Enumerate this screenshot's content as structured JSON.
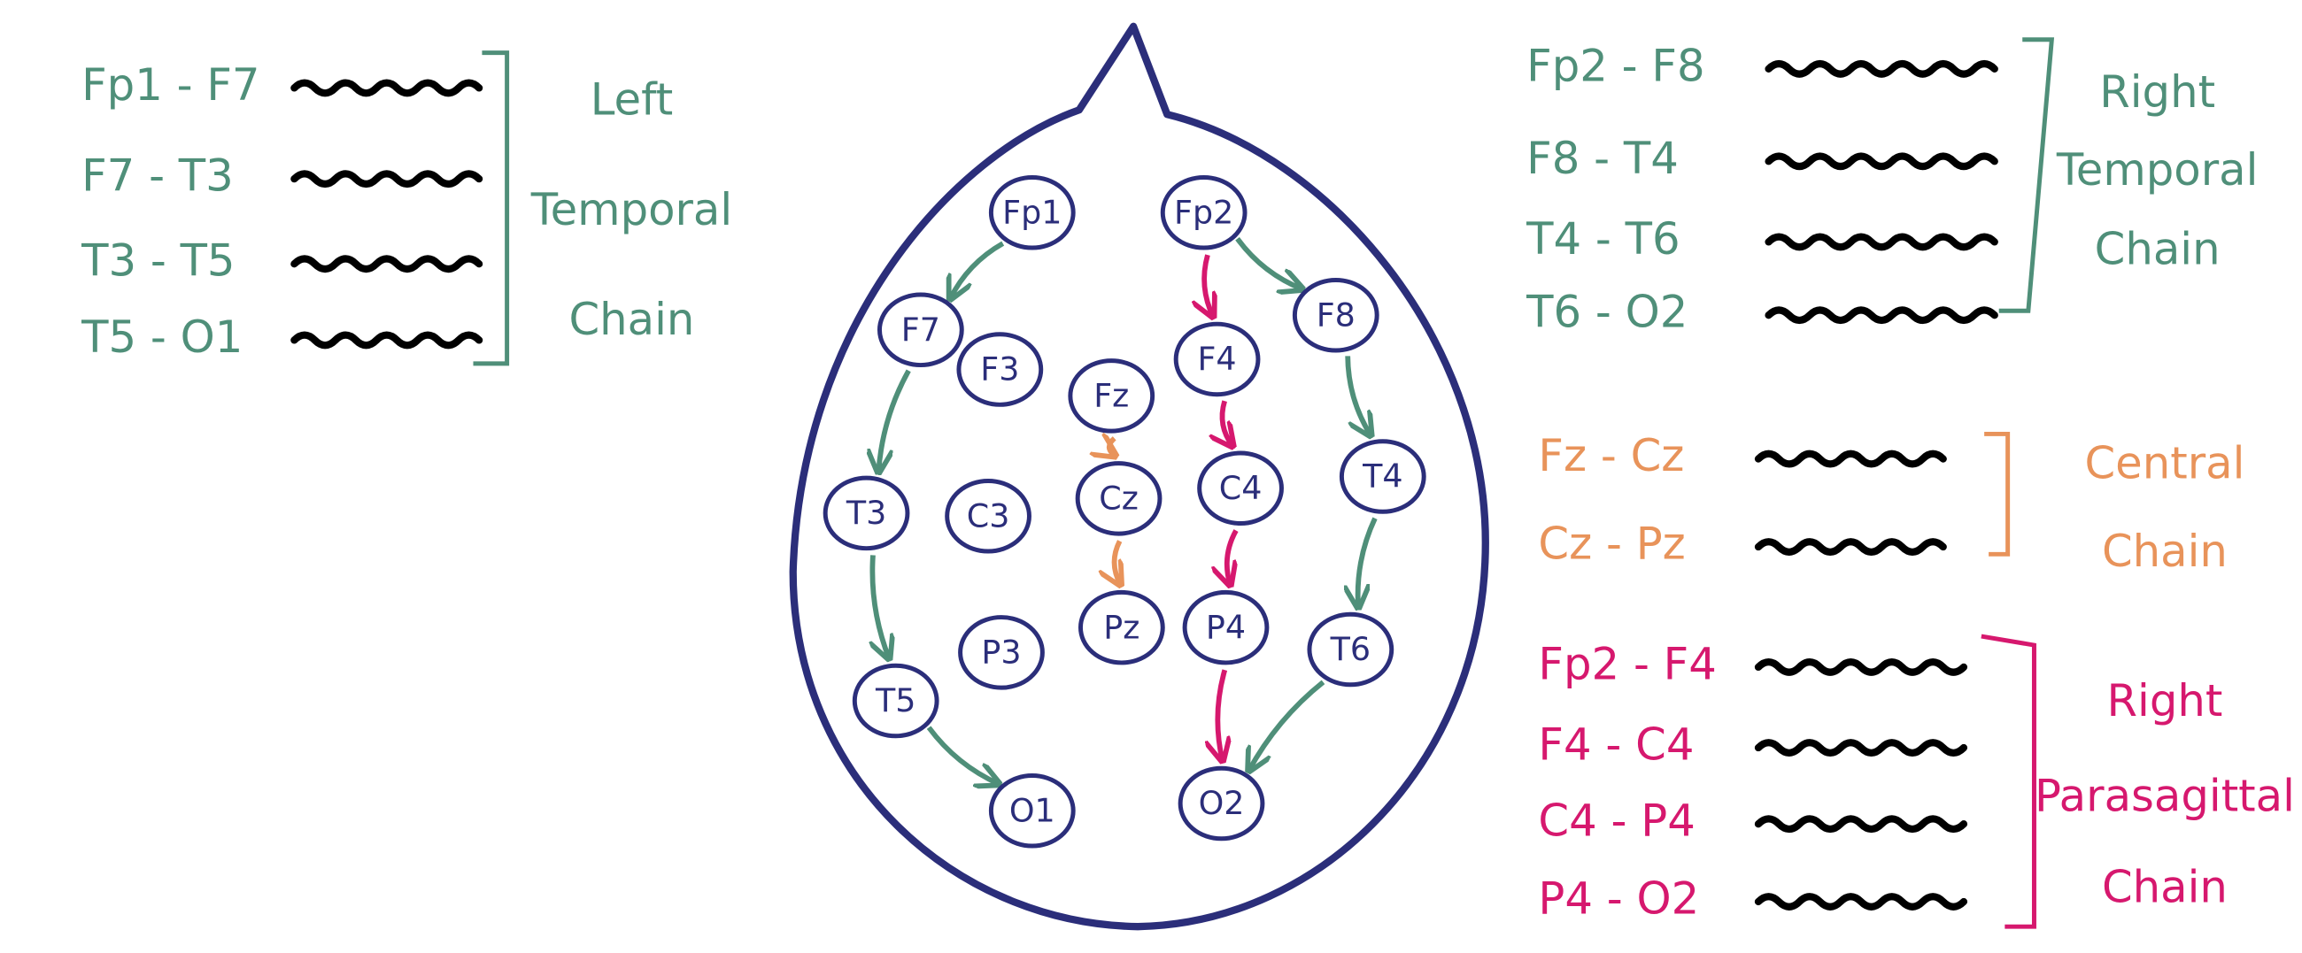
{
  "left_temporal": {
    "title_lines": [
      "Left",
      "Temporal",
      "Chain"
    ],
    "channels": [
      "Fp1 - F7",
      "F7 - T3",
      "T3 - T5",
      "T5 - O1"
    ]
  },
  "right_temporal": {
    "title_lines": [
      "Right",
      "Temporal",
      "Chain"
    ],
    "channels": [
      "Fp2 - F8",
      "F8 - T4",
      "T4 - T6",
      "T6 - O2"
    ]
  },
  "central": {
    "title_lines": [
      "Central",
      "Chain"
    ],
    "channels": [
      "Fz - Cz",
      "Cz - Pz"
    ]
  },
  "right_parasagittal": {
    "title_lines": [
      "Right",
      "Parasagittal",
      "Chain"
    ],
    "channels": [
      "Fp2 - F4",
      "F4 - C4",
      "C4 - P4",
      "P4 - O2"
    ]
  },
  "electrodes": [
    "Fp1",
    "Fp2",
    "F7",
    "F3",
    "Fz",
    "F4",
    "F8",
    "T3",
    "C3",
    "Cz",
    "C4",
    "T4",
    "P3",
    "Pz",
    "P4",
    "T6",
    "T5",
    "O1",
    "O2"
  ]
}
